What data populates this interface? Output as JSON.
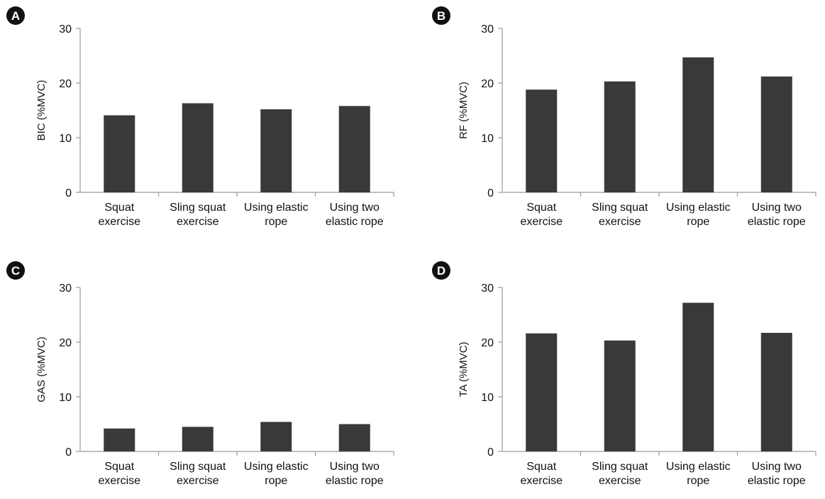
{
  "figure": {
    "bar_color": "#3a3838",
    "axis_color": "#9a9a9a",
    "badge_color": "#111111",
    "text_color": "#111111"
  },
  "chart_data": [
    {
      "type": "bar",
      "panel_label": "A",
      "ylabel": "BIC (%MVC)",
      "ylim": [
        0,
        30
      ],
      "yticks": [
        0,
        10,
        20,
        30
      ],
      "categories": [
        [
          "Squat",
          "exercise"
        ],
        [
          "Sling squat",
          "exercise"
        ],
        [
          "Using elastic",
          "rope"
        ],
        [
          "Using two",
          "elastic rope"
        ]
      ],
      "values": [
        14.1,
        16.3,
        15.2,
        15.8
      ],
      "grid": false,
      "legend": "none"
    },
    {
      "type": "bar",
      "panel_label": "B",
      "ylabel": "RF (%MVC)",
      "ylim": [
        0,
        30
      ],
      "yticks": [
        0,
        10,
        20,
        30
      ],
      "categories": [
        [
          "Squat",
          "exercise"
        ],
        [
          "Sling squat",
          "exercise"
        ],
        [
          "Using elastic",
          "rope"
        ],
        [
          "Using two",
          "elastic rope"
        ]
      ],
      "values": [
        18.8,
        20.3,
        24.7,
        21.2
      ],
      "grid": false,
      "legend": "none"
    },
    {
      "type": "bar",
      "panel_label": "C",
      "ylabel": "GAS (%MVC)",
      "ylim": [
        0,
        30
      ],
      "yticks": [
        0,
        10,
        20,
        30
      ],
      "categories": [
        [
          "Squat",
          "exercise"
        ],
        [
          "Sling squat",
          "exercise"
        ],
        [
          "Using elastic",
          "rope"
        ],
        [
          "Using two",
          "elastic rope"
        ]
      ],
      "values": [
        4.2,
        4.5,
        5.4,
        5.0
      ],
      "grid": false,
      "legend": "none"
    },
    {
      "type": "bar",
      "panel_label": "D",
      "ylabel": "TA (%MVC)",
      "ylim": [
        0,
        30
      ],
      "yticks": [
        0,
        10,
        20,
        30
      ],
      "categories": [
        [
          "Squat",
          "exercise"
        ],
        [
          "Sling squat",
          "exercise"
        ],
        [
          "Using elastic",
          "rope"
        ],
        [
          "Using two",
          "elastic rope"
        ]
      ],
      "values": [
        21.6,
        20.3,
        27.2,
        21.7
      ],
      "grid": false,
      "legend": "none"
    }
  ]
}
